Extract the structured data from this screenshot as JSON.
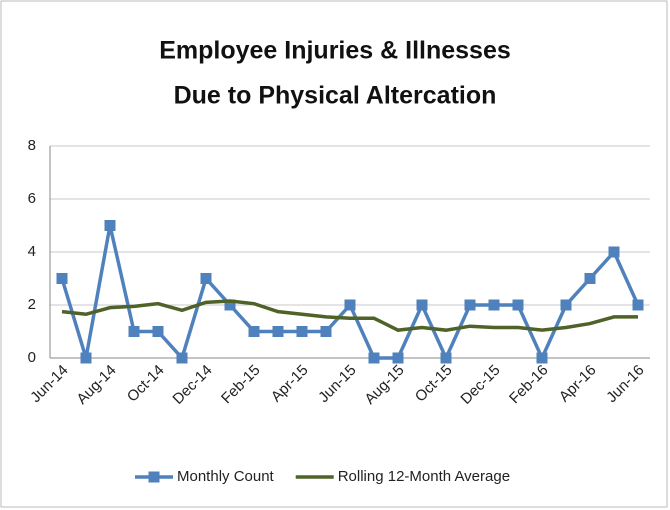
{
  "chart_data": {
    "type": "line",
    "title": [
      "Employee Injuries & Illnesses",
      "Due to Physical Altercation"
    ],
    "categories": [
      "Jun-14",
      null,
      "Aug-14",
      null,
      "Oct-14",
      null,
      "Dec-14",
      null,
      "Feb-15",
      null,
      "Apr-15",
      null,
      "Jun-15",
      null,
      "Aug-15",
      null,
      "Oct-15",
      null,
      "Dec-15",
      null,
      "Feb-16",
      null,
      "Apr-16",
      null,
      "Jun-16"
    ],
    "series": [
      {
        "name": "Monthly Count",
        "color": "#4f81bd",
        "marker": "square",
        "values": [
          3,
          0,
          5,
          1,
          1,
          0,
          3,
          2,
          1,
          1,
          1,
          1,
          2,
          0,
          0,
          2,
          0,
          2,
          2,
          2,
          0,
          2,
          3,
          4,
          2
        ]
      },
      {
        "name": "Rolling 12-Month Average",
        "color": "#4f6228",
        "values": [
          1.75,
          1.65,
          1.9,
          1.95,
          2.05,
          1.8,
          2.1,
          2.15,
          2.05,
          1.75,
          1.65,
          1.55,
          1.5,
          1.5,
          1.05,
          1.15,
          1.05,
          1.2,
          1.15,
          1.15,
          1.05,
          1.15,
          1.3,
          1.55,
          1.55
        ]
      }
    ],
    "ylim": [
      0,
      8
    ],
    "yticks": [
      0,
      2,
      4,
      6,
      8
    ],
    "grid": true,
    "legend": "bottom"
  }
}
